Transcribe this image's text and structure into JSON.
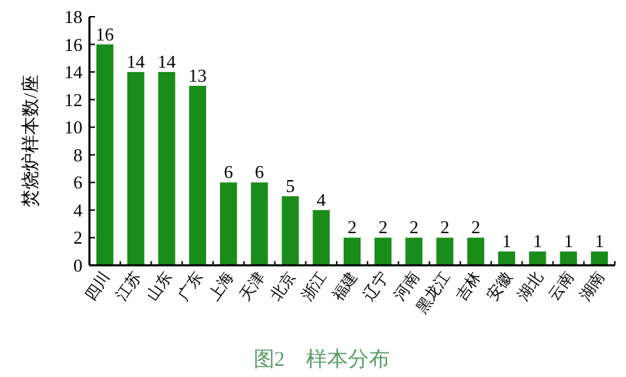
{
  "chart_data": {
    "type": "bar",
    "title": "图2　样本分布",
    "ylabel": "焚烧炉样本数/座",
    "categories": [
      "四川",
      "江苏",
      "山东",
      "广东",
      "上海",
      "天津",
      "北京",
      "浙江",
      "福建",
      "辽宁",
      "河南",
      "黑龙江",
      "吉林",
      "安徽",
      "湖北",
      "云南",
      "湖南"
    ],
    "values": [
      16,
      14,
      14,
      13,
      6,
      6,
      5,
      4,
      2,
      2,
      2,
      2,
      2,
      1,
      1,
      1,
      1
    ],
    "color": "#1a8c1a",
    "ylim": [
      0,
      18
    ],
    "yticks": [
      0,
      2,
      4,
      6,
      8,
      10,
      12,
      14,
      16,
      18
    ],
    "data_labels": true,
    "grid": false
  }
}
